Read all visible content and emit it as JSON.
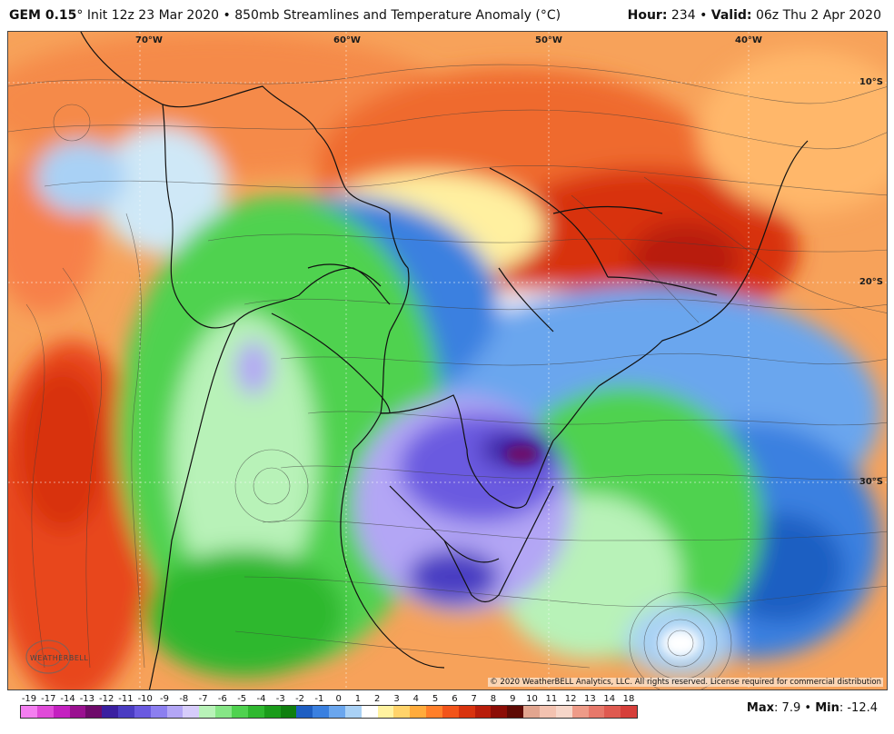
{
  "header": {
    "model_label": "GEM 0.15",
    "model_suffix": "°",
    "init": "Init 12z 23 Mar 2020",
    "separator": "•",
    "product": "850mb Streamlines and Temperature Anomaly (°C)",
    "hour_label": "Hour:",
    "hour_value": "234",
    "valid_label": "Valid:",
    "valid_value": "06z Thu 2 Apr 2020"
  },
  "map": {
    "lon_labels": [
      "70°W",
      "60°W",
      "50°W",
      "40°W"
    ],
    "lat_labels": [
      "10°S",
      "20°S",
      "30°S"
    ],
    "copyright": "© 2020 WeatherBELL Analytics, LLC. All rights reserved. License required for commercial distribution",
    "logo_text": "WEATHERBELL",
    "logo_icon": "weatherbell-logo-icon"
  },
  "colorbar": {
    "ticks": [
      "-19",
      "-17",
      "-14",
      "-13",
      "-12",
      "-11",
      "-10",
      "-9",
      "-8",
      "-7",
      "-6",
      "-5",
      "-4",
      "-3",
      "-2",
      "-1",
      "0",
      "1",
      "2",
      "3",
      "4",
      "5",
      "6",
      "7",
      "8",
      "9",
      "10",
      "11",
      "12",
      "13",
      "14",
      "18"
    ],
    "colors": [
      "#f47ef0",
      "#e04ad8",
      "#c420c0",
      "#9a1090",
      "#6e0a6a",
      "#3a1fa0",
      "#4a3cc2",
      "#6a5ae0",
      "#8c7ff0",
      "#b3a6f5",
      "#d6ccfa",
      "#b8f2b8",
      "#86e686",
      "#4fd24f",
      "#2fb82f",
      "#1b9c1b",
      "#0f7f0f",
      "#1e5ec2",
      "#3a80e0",
      "#6aa6ee",
      "#a9d1f5",
      "#ffffff",
      "#fff2a0",
      "#ffd36a",
      "#ffab3c",
      "#ff7f2a",
      "#f2541a",
      "#d8330e",
      "#b81d0a",
      "#8c0d06",
      "#5e0a04",
      "#e2a58f",
      "#f3c2b0",
      "#f6d6c9",
      "#ee9b88",
      "#e7786a",
      "#df5a50",
      "#d63f3a"
    ]
  },
  "stats": {
    "max_label": "Max",
    "max_value": "7.9",
    "bullet": "•",
    "min_label": "Min",
    "min_value": "-12.4"
  }
}
